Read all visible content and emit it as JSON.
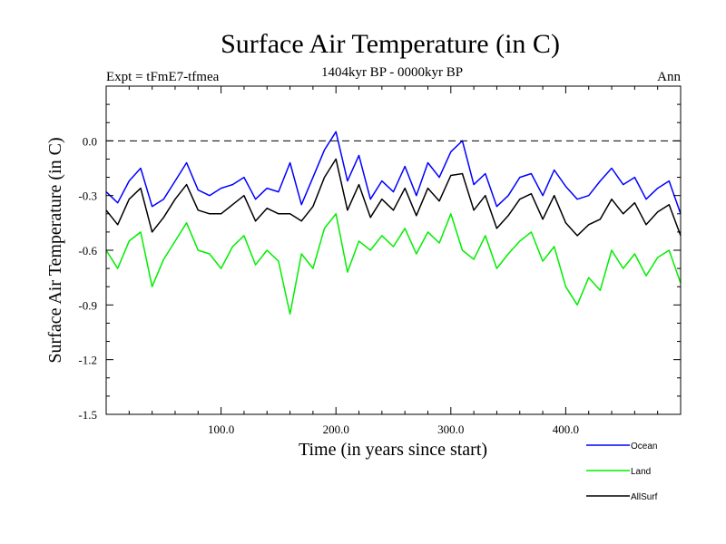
{
  "chart_data": {
    "type": "line",
    "title": "Surface Air Temperature (in C)",
    "experiment_label": "Expt = tFmE7-tfmea",
    "period_label": "1404kyr BP - 0000kyr BP",
    "season_label": "Ann",
    "xlabel": "Time (in years since start)",
    "ylabel": "Surface Air Temperature (in C)",
    "xlim": [
      0,
      500
    ],
    "ylim": [
      -1.5,
      0.3
    ],
    "xticks": [
      100,
      200,
      300,
      400
    ],
    "xtick_labels": [
      "100.0",
      "200.0",
      "300.0",
      "400.0"
    ],
    "yticks": [
      0.0,
      -0.3,
      -0.6,
      -0.9,
      -1.2,
      -1.5
    ],
    "ytick_labels": [
      "0.0",
      "-0.3",
      "-0.6",
      "-0.9",
      "-1.2",
      "-1.5"
    ],
    "reference_line": {
      "y": 0.0,
      "style": "dashed"
    },
    "colors": {
      "Ocean": "#0000ff",
      "Land": "#00ee00",
      "AllSurf": "#000000"
    },
    "series": [
      {
        "name": "Ocean",
        "x": [
          0,
          10,
          20,
          30,
          40,
          50,
          60,
          70,
          80,
          90,
          100,
          110,
          120,
          130,
          140,
          150,
          160,
          170,
          180,
          190,
          200,
          210,
          220,
          230,
          240,
          250,
          260,
          270,
          280,
          290,
          300,
          310,
          320,
          330,
          340,
          350,
          360,
          370,
          380,
          390,
          400,
          410,
          420,
          430,
          440,
          450,
          460,
          470,
          480,
          490,
          500
        ],
        "values": [
          -0.28,
          -0.34,
          -0.22,
          -0.15,
          -0.36,
          -0.32,
          -0.22,
          -0.12,
          -0.27,
          -0.3,
          -0.26,
          -0.24,
          -0.2,
          -0.32,
          -0.26,
          -0.28,
          -0.12,
          -0.35,
          -0.2,
          -0.05,
          0.05,
          -0.22,
          -0.08,
          -0.32,
          -0.22,
          -0.28,
          -0.14,
          -0.3,
          -0.12,
          -0.2,
          -0.06,
          0.0,
          -0.24,
          -0.18,
          -0.36,
          -0.3,
          -0.2,
          -0.18,
          -0.3,
          -0.16,
          -0.25,
          -0.32,
          -0.3,
          -0.22,
          -0.15,
          -0.24,
          -0.2,
          -0.32,
          -0.26,
          -0.22,
          -0.4
        ]
      },
      {
        "name": "Land",
        "x": [
          0,
          10,
          20,
          30,
          40,
          50,
          60,
          70,
          80,
          90,
          100,
          110,
          120,
          130,
          140,
          150,
          160,
          170,
          180,
          190,
          200,
          210,
          220,
          230,
          240,
          250,
          260,
          270,
          280,
          290,
          300,
          310,
          320,
          330,
          340,
          350,
          360,
          370,
          380,
          390,
          400,
          410,
          420,
          430,
          440,
          450,
          460,
          470,
          480,
          490,
          500
        ],
        "values": [
          -0.6,
          -0.7,
          -0.55,
          -0.5,
          -0.8,
          -0.65,
          -0.55,
          -0.45,
          -0.6,
          -0.62,
          -0.7,
          -0.58,
          -0.52,
          -0.68,
          -0.6,
          -0.66,
          -0.95,
          -0.62,
          -0.7,
          -0.48,
          -0.4,
          -0.72,
          -0.55,
          -0.6,
          -0.52,
          -0.58,
          -0.48,
          -0.62,
          -0.5,
          -0.56,
          -0.4,
          -0.6,
          -0.65,
          -0.52,
          -0.7,
          -0.62,
          -0.55,
          -0.5,
          -0.66,
          -0.58,
          -0.8,
          -0.9,
          -0.75,
          -0.82,
          -0.6,
          -0.7,
          -0.62,
          -0.74,
          -0.64,
          -0.6,
          -0.78
        ]
      },
      {
        "name": "AllSurf",
        "x": [
          0,
          10,
          20,
          30,
          40,
          50,
          60,
          70,
          80,
          90,
          100,
          110,
          120,
          130,
          140,
          150,
          160,
          170,
          180,
          190,
          200,
          210,
          220,
          230,
          240,
          250,
          260,
          270,
          280,
          290,
          300,
          310,
          320,
          330,
          340,
          350,
          360,
          370,
          380,
          390,
          400,
          410,
          420,
          430,
          440,
          450,
          460,
          470,
          480,
          490,
          500
        ],
        "values": [
          -0.38,
          -0.46,
          -0.32,
          -0.26,
          -0.5,
          -0.42,
          -0.32,
          -0.24,
          -0.38,
          -0.4,
          -0.4,
          -0.35,
          -0.3,
          -0.44,
          -0.37,
          -0.4,
          -0.4,
          -0.44,
          -0.36,
          -0.2,
          -0.1,
          -0.38,
          -0.24,
          -0.42,
          -0.32,
          -0.38,
          -0.26,
          -0.41,
          -0.26,
          -0.33,
          -0.19,
          -0.18,
          -0.38,
          -0.3,
          -0.48,
          -0.41,
          -0.32,
          -0.29,
          -0.43,
          -0.3,
          -0.45,
          -0.52,
          -0.46,
          -0.43,
          -0.32,
          -0.4,
          -0.34,
          -0.46,
          -0.39,
          -0.35,
          -0.52
        ]
      }
    ]
  }
}
